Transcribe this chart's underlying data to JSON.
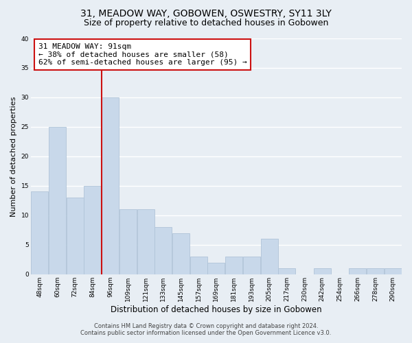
{
  "title": "31, MEADOW WAY, GOBOWEN, OSWESTRY, SY11 3LY",
  "subtitle": "Size of property relative to detached houses in Gobowen",
  "xlabel": "Distribution of detached houses by size in Gobowen",
  "ylabel": "Number of detached properties",
  "bar_color": "#c8d8ea",
  "bar_edge_color": "#b0c4d8",
  "vline_color": "#cc1111",
  "annotation_text": "31 MEADOW WAY: 91sqm\n← 38% of detached houses are smaller (58)\n62% of semi-detached houses are larger (95) →",
  "annotation_box_color": "white",
  "annotation_box_edge": "#cc1111",
  "categories": [
    "48sqm",
    "60sqm",
    "72sqm",
    "84sqm",
    "96sqm",
    "109sqm",
    "121sqm",
    "133sqm",
    "145sqm",
    "157sqm",
    "169sqm",
    "181sqm",
    "193sqm",
    "205sqm",
    "217sqm",
    "230sqm",
    "242sqm",
    "254sqm",
    "266sqm",
    "278sqm",
    "290sqm"
  ],
  "values": [
    14,
    25,
    13,
    15,
    30,
    11,
    11,
    8,
    7,
    3,
    2,
    3,
    3,
    6,
    1,
    0,
    1,
    0,
    1,
    1,
    1
  ],
  "ylim": [
    0,
    40
  ],
  "yticks": [
    0,
    5,
    10,
    15,
    20,
    25,
    30,
    35,
    40
  ],
  "background_color": "#e8eef4",
  "plot_bg_color": "#e8eef4",
  "grid_color": "#ffffff",
  "footer_line1": "Contains HM Land Registry data © Crown copyright and database right 2024.",
  "footer_line2": "Contains public sector information licensed under the Open Government Licence v3.0.",
  "title_fontsize": 10,
  "subtitle_fontsize": 9,
  "xlabel_fontsize": 8.5,
  "ylabel_fontsize": 8,
  "tick_fontsize": 6.5,
  "annotation_fontsize": 8,
  "footer_fontsize": 6
}
